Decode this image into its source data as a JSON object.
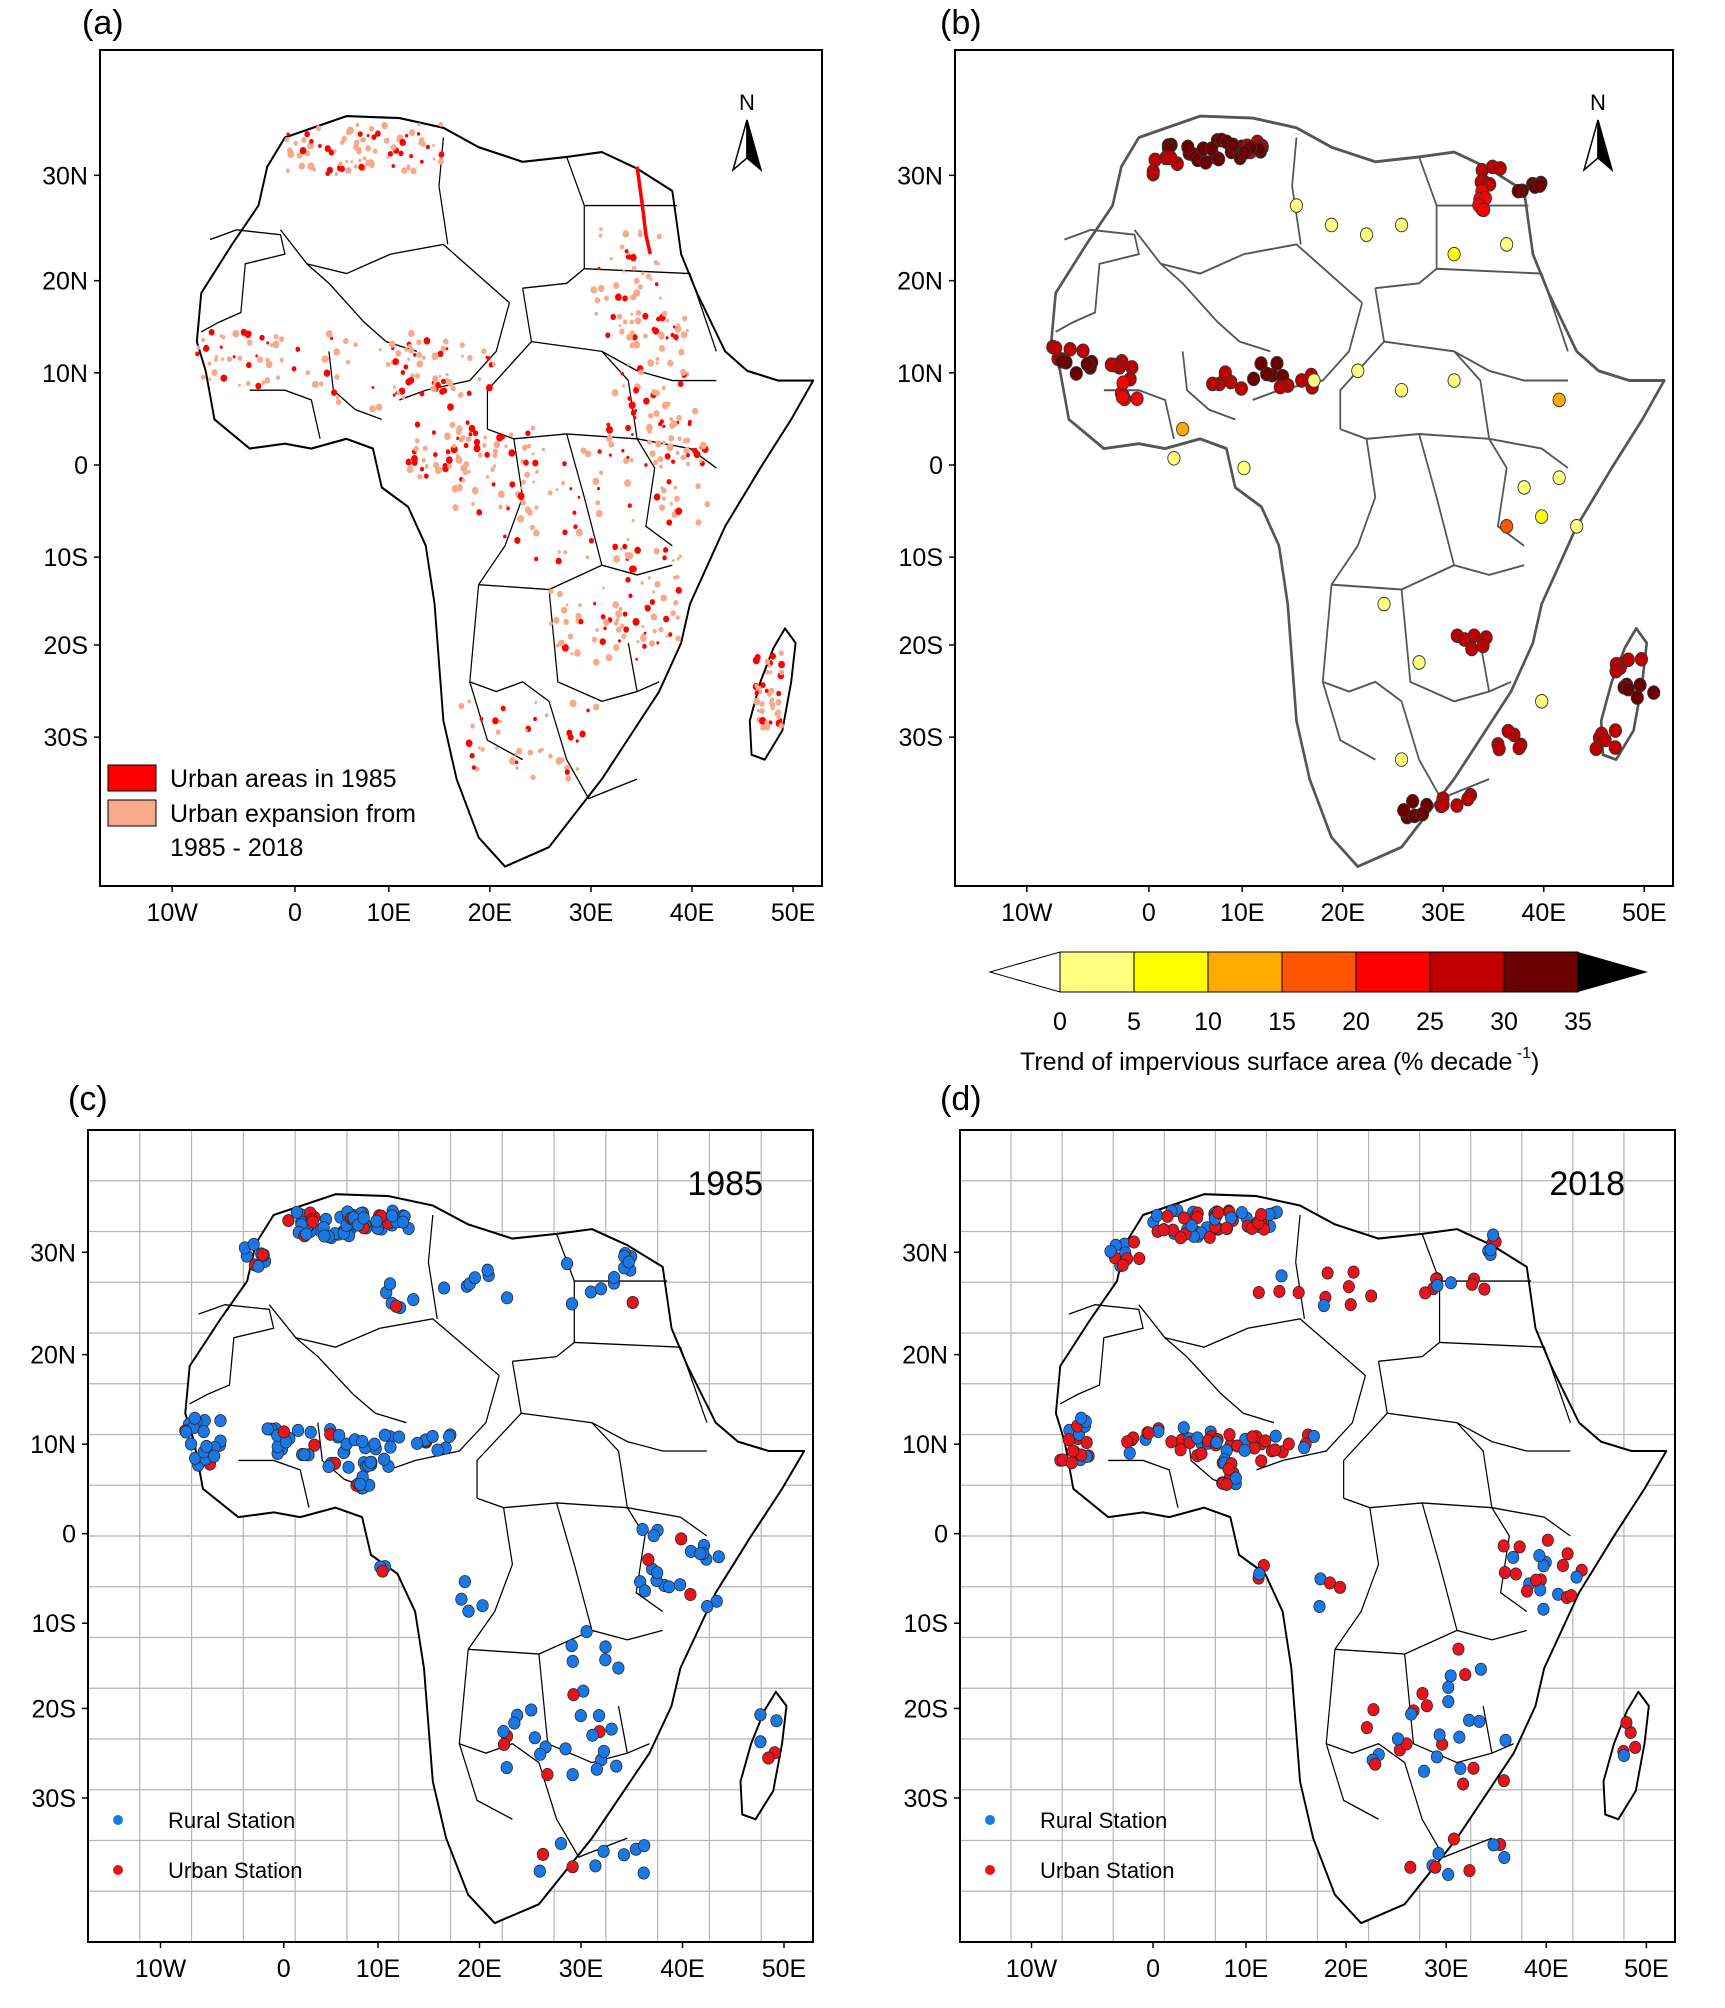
{
  "panels": {
    "a": {
      "label": "(a)",
      "legend": {
        "urban_1985": "Urban areas in 1985",
        "expansion_line1": "Urban expansion from",
        "expansion_line2": "1985 - 2018",
        "urban_1985_color": "#ff0000",
        "expansion_color": "#f7a98a"
      }
    },
    "b": {
      "label": "(b)",
      "colorbar": {
        "title": "Trend of impervious surface area (% decade",
        "title_sup": "-1",
        "title_close": ")",
        "ticks": [
          "0",
          "5",
          "10",
          "15",
          "20",
          "25",
          "30",
          "35"
        ],
        "colors": [
          "#ffff80",
          "#ffff00",
          "#ffaa00",
          "#ff5500",
          "#ff0000",
          "#c00000",
          "#6b0000"
        ],
        "under_color": "#ffffff",
        "over_color": "#000000"
      }
    },
    "c": {
      "label": "(c)",
      "year": "1985"
    },
    "d": {
      "label": "(d)",
      "year": "2018"
    }
  },
  "station_legend": {
    "rural": "Rural Station",
    "urban": "Urban Station",
    "rural_color": "#1a78e6",
    "urban_color": "#e8141b"
  },
  "axes": {
    "lat_ticks": [
      "30N",
      "20N",
      "10N",
      "0",
      "10S",
      "20S",
      "30S"
    ],
    "lon_ticks": [
      "10W",
      "0",
      "10E",
      "20E",
      "30E",
      "40E",
      "50E"
    ]
  },
  "north_arrow": "N"
}
